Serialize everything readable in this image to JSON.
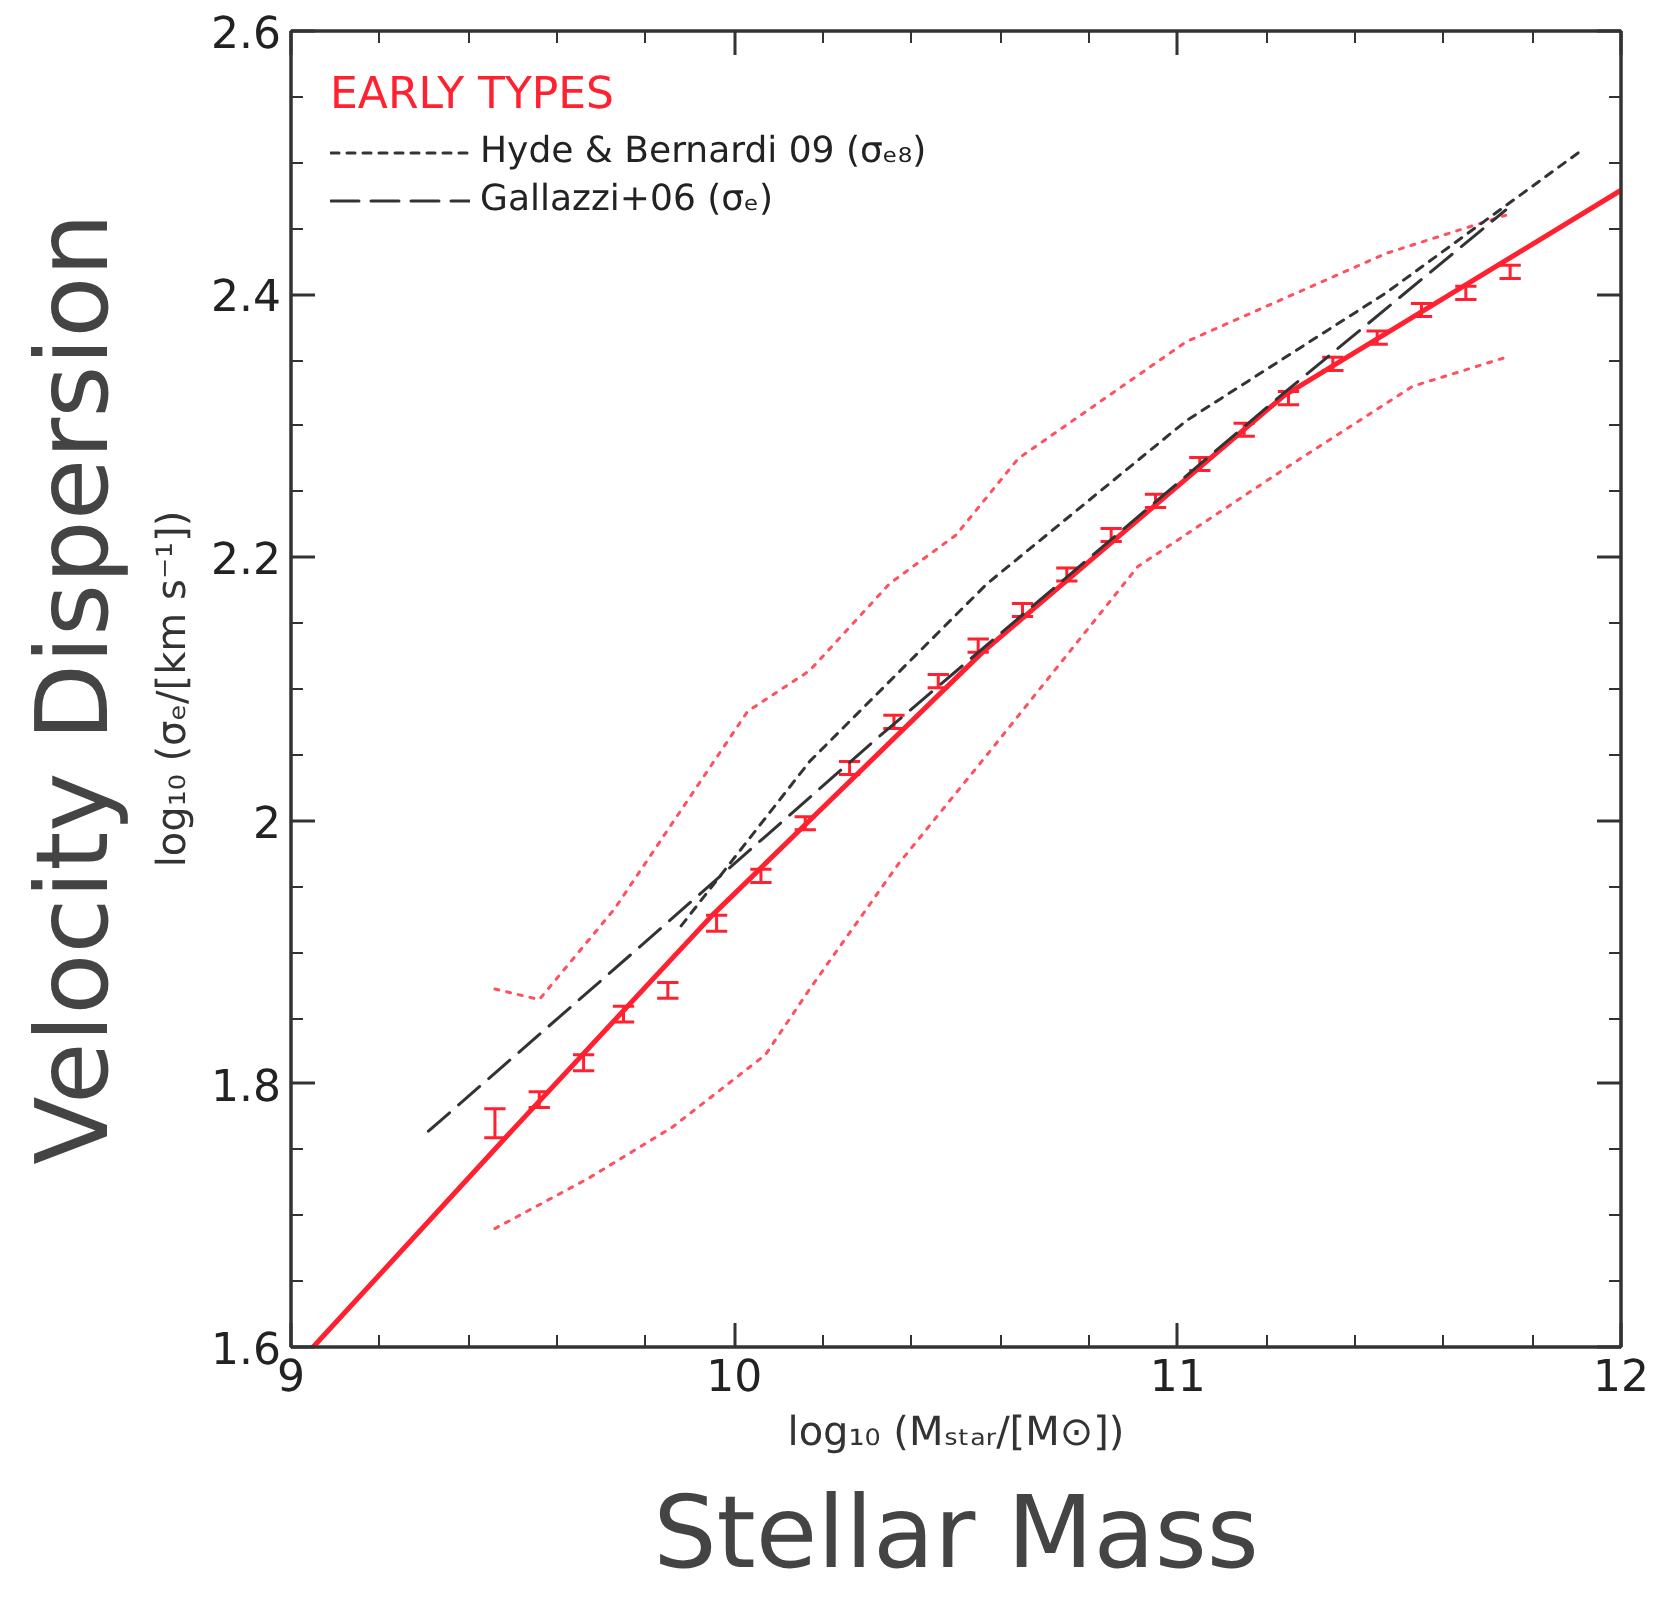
{
  "chart_data": {
    "type": "line",
    "xlabel": "log₁₀ (Mₛₜₐᵣ/[M⊙])",
    "ylabel": "log₁₀ (σₑ/[km s⁻¹])",
    "legend_title": "EARLY TYPES",
    "annotations": [
      "Velocity Dispersion",
      "Stellar Mass"
    ],
    "xlim": [
      9,
      12
    ],
    "xticks": [
      9,
      10,
      11,
      12
    ],
    "ylim": [
      1.6,
      2.6
    ],
    "yticks": [
      1.6,
      1.8,
      2,
      2.2,
      2.4,
      2.6
    ],
    "grid": false,
    "legend": "top left",
    "series": [
      {
        "color": "#ff2030",
        "line_style": "solid",
        "x": [
          9.05,
          9.5,
          9.95,
          10.56,
          11.24,
          12
        ],
        "values": [
          1.6,
          1.765,
          1.928,
          2.128,
          2.323,
          2.479
        ]
      },
      {
        "type": "scatter",
        "color": "#ff2030",
        "x": [
          9.46,
          9.56,
          9.66,
          9.75,
          9.85,
          9.96,
          10.06,
          10.16,
          10.26,
          10.36,
          10.46,
          10.55,
          10.65,
          10.75,
          10.85,
          10.95,
          11.05,
          11.15,
          11.25,
          11.35,
          11.45,
          11.55,
          11.65,
          11.75
        ],
        "values": [
          1.77,
          1.788,
          1.816,
          1.853,
          1.871,
          1.922,
          1.958,
          1.998,
          2.04,
          2.075,
          2.106,
          2.133,
          2.16,
          2.187,
          2.217,
          2.243,
          2.271,
          2.297,
          2.321,
          2.347,
          2.367,
          2.388,
          2.401,
          2.417
        ],
        "errors": [
          0.011,
          0.006,
          0.006,
          0.006,
          0.006,
          0.006,
          0.005,
          0.005,
          0.005,
          0.005,
          0.005,
          0.005,
          0.005,
          0.005,
          0.005,
          0.005,
          0.005,
          0.005,
          0.005,
          0.005,
          0.005,
          0.005,
          0.005,
          0.005
        ]
      },
      {
        "color": "#ff5060",
        "line_style": "dotted",
        "x": [
          9.46,
          9.56,
          9.73,
          10.03,
          10.17,
          10.35,
          10.5,
          10.64,
          11.02,
          11.47,
          11.74
        ],
        "values": [
          1.872,
          1.864,
          1.933,
          2.083,
          2.114,
          2.18,
          2.217,
          2.275,
          2.364,
          2.431,
          2.46
        ]
      },
      {
        "color": "#ff5060",
        "line_style": "dotted",
        "x": [
          9.46,
          9.67,
          9.86,
          10.07,
          10.17,
          10.37,
          10.57,
          10.91,
          11.24,
          11.53,
          11.74
        ],
        "values": [
          1.69,
          1.728,
          1.767,
          1.822,
          1.872,
          1.967,
          2.05,
          2.193,
          2.267,
          2.33,
          2.352
        ]
      },
      {
        "name": "Hyde & Bernardi 09 (σₑ₈)",
        "color": "#333333",
        "line_style": "dashed",
        "x": [
          9.88,
          10.17,
          10.57,
          11.02,
          11.47,
          11.91
        ],
        "values": [
          1.92,
          2.045,
          2.18,
          2.304,
          2.401,
          2.509
        ]
      },
      {
        "name": "Gallazzi+06 (σₑ)",
        "color": "#333333",
        "line_style": "dashed",
        "x": [
          9.31,
          9.8,
          10.32,
          10.75,
          11.24,
          11.74
        ],
        "values": [
          1.764,
          1.908,
          2.062,
          2.185,
          2.325,
          2.464
        ]
      }
    ]
  }
}
